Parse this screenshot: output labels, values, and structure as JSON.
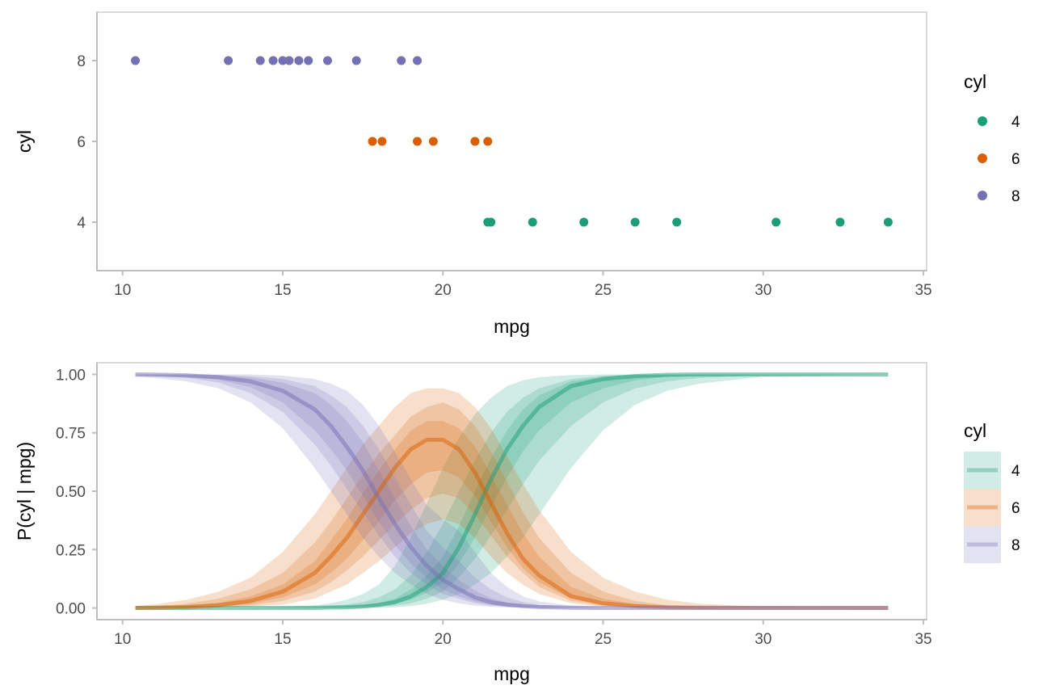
{
  "chart_data": [
    {
      "type": "scatter",
      "xlabel": "mpg",
      "ylabel": "cyl",
      "xlim": [
        9.2,
        35.1
      ],
      "ylim": [
        2.8,
        9.2
      ],
      "xticks": [
        "10",
        "15",
        "20",
        "25",
        "30",
        "35"
      ],
      "yticks": [
        "4",
        "6",
        "8"
      ],
      "grid": false,
      "legend": {
        "title": "cyl",
        "position": "right",
        "labels": [
          "4",
          "6",
          "8"
        ]
      },
      "colors": {
        "4": "#1b9e77",
        "6": "#d95f02",
        "8": "#7570b3"
      },
      "series": [
        {
          "name": "4",
          "y": 4,
          "x": [
            21.4,
            21.5,
            22.8,
            24.4,
            26.0,
            27.3,
            30.4,
            32.4,
            33.9
          ]
        },
        {
          "name": "6",
          "y": 6,
          "x": [
            17.8,
            18.1,
            19.2,
            19.7,
            21.0,
            21.4
          ]
        },
        {
          "name": "8",
          "y": 8,
          "x": [
            10.4,
            13.3,
            14.3,
            14.7,
            15.0,
            15.2,
            15.5,
            15.8,
            16.4,
            17.3,
            18.7,
            19.2
          ]
        }
      ]
    },
    {
      "type": "area",
      "xlabel": "mpg",
      "ylabel": "P(cyl | mpg)",
      "xlim": [
        9.2,
        35.1
      ],
      "ylim": [
        -0.05,
        1.05
      ],
      "xticks": [
        "10",
        "15",
        "20",
        "25",
        "30",
        "35"
      ],
      "yticks": [
        "0.00",
        "0.25",
        "0.50",
        "0.75",
        "1.00"
      ],
      "grid": false,
      "legend": {
        "title": "cyl",
        "position": "right",
        "labels": [
          "4",
          "6",
          "8"
        ]
      },
      "colors": {
        "4": "#1b9e77",
        "6": "#d95f02",
        "8": "#7570b3"
      },
      "x": [
        10.4,
        11,
        12,
        13,
        14,
        15,
        16,
        16.5,
        17,
        17.5,
        18,
        18.5,
        19,
        19.5,
        20,
        20.5,
        21,
        21.5,
        22,
        22.5,
        23,
        24,
        25,
        26,
        27,
        28,
        30,
        33.9
      ],
      "series": [
        {
          "name": "4",
          "median": [
            0,
            0,
            0,
            0,
            0,
            0,
            0,
            0.002,
            0.003,
            0.006,
            0.013,
            0.025,
            0.05,
            0.09,
            0.15,
            0.26,
            0.4,
            0.55,
            0.68,
            0.78,
            0.86,
            0.95,
            0.98,
            0.993,
            0.998,
            1,
            1,
            1
          ],
          "bands": [
            {
              "lower": [
                0,
                0,
                0,
                0,
                0,
                0,
                0,
                0,
                0,
                0,
                0,
                0.003,
                0.008,
                0.018,
                0.035,
                0.06,
                0.1,
                0.15,
                0.22,
                0.3,
                0.4,
                0.6,
                0.76,
                0.87,
                0.93,
                0.96,
                0.99,
                1
              ],
              "upper": [
                0,
                0,
                0,
                0,
                0.002,
                0.005,
                0.012,
                0.02,
                0.035,
                0.06,
                0.1,
                0.18,
                0.3,
                0.45,
                0.6,
                0.73,
                0.83,
                0.9,
                0.95,
                0.975,
                0.988,
                0.997,
                1,
                1,
                1,
                1,
                1,
                1
              ]
            },
            {
              "lower": [
                0,
                0,
                0,
                0,
                0,
                0,
                0,
                0,
                0.001,
                0.002,
                0.005,
                0.01,
                0.02,
                0.04,
                0.07,
                0.13,
                0.21,
                0.31,
                0.42,
                0.53,
                0.63,
                0.78,
                0.88,
                0.94,
                0.97,
                0.985,
                0.996,
                1
              ],
              "upper": [
                0,
                0,
                0,
                0,
                0,
                0.002,
                0.005,
                0.009,
                0.015,
                0.025,
                0.045,
                0.08,
                0.14,
                0.24,
                0.36,
                0.5,
                0.63,
                0.75,
                0.84,
                0.9,
                0.94,
                0.98,
                0.995,
                0.999,
                1,
                1,
                1,
                1
              ]
            },
            {
              "lower": [
                0,
                0,
                0,
                0,
                0,
                0,
                0,
                0,
                0.002,
                0.004,
                0.009,
                0.018,
                0.035,
                0.065,
                0.11,
                0.19,
                0.3,
                0.43,
                0.56,
                0.67,
                0.76,
                0.88,
                0.94,
                0.975,
                0.99,
                0.996,
                0.999,
                1
              ],
              "upper": [
                0,
                0,
                0,
                0,
                0,
                0.001,
                0.002,
                0.004,
                0.007,
                0.012,
                0.022,
                0.04,
                0.08,
                0.14,
                0.22,
                0.35,
                0.5,
                0.64,
                0.76,
                0.85,
                0.91,
                0.97,
                0.99,
                0.997,
                1,
                1,
                1,
                1
              ]
            }
          ]
        },
        {
          "name": "6",
          "median": [
            0,
            0.001,
            0.004,
            0.012,
            0.03,
            0.07,
            0.15,
            0.22,
            0.3,
            0.4,
            0.5,
            0.6,
            0.68,
            0.72,
            0.72,
            0.68,
            0.58,
            0.45,
            0.32,
            0.21,
            0.14,
            0.05,
            0.02,
            0.008,
            0.003,
            0.001,
            0,
            0
          ],
          "bands": [
            {
              "lower": [
                0,
                0,
                0,
                0.002,
                0.006,
                0.015,
                0.04,
                0.07,
                0.1,
                0.15,
                0.2,
                0.26,
                0.32,
                0.36,
                0.38,
                0.36,
                0.3,
                0.22,
                0.15,
                0.1,
                0.06,
                0.02,
                0.006,
                0.002,
                0,
                0,
                0,
                0
              ],
              "upper": [
                0.008,
                0.015,
                0.035,
                0.07,
                0.13,
                0.24,
                0.4,
                0.5,
                0.6,
                0.7,
                0.78,
                0.86,
                0.92,
                0.94,
                0.94,
                0.92,
                0.86,
                0.77,
                0.65,
                0.53,
                0.42,
                0.24,
                0.13,
                0.07,
                0.035,
                0.018,
                0.005,
                0
              ]
            },
            {
              "lower": [
                0,
                0,
                0.001,
                0.004,
                0.012,
                0.03,
                0.07,
                0.11,
                0.16,
                0.22,
                0.29,
                0.36,
                0.42,
                0.47,
                0.49,
                0.47,
                0.4,
                0.31,
                0.22,
                0.15,
                0.09,
                0.03,
                0.01,
                0.003,
                0.001,
                0,
                0,
                0
              ],
              "upper": [
                0.003,
                0.007,
                0.018,
                0.04,
                0.08,
                0.15,
                0.28,
                0.37,
                0.47,
                0.57,
                0.66,
                0.74,
                0.82,
                0.86,
                0.88,
                0.85,
                0.78,
                0.67,
                0.54,
                0.41,
                0.3,
                0.15,
                0.07,
                0.03,
                0.012,
                0.005,
                0.001,
                0
              ]
            },
            {
              "lower": [
                0,
                0,
                0.002,
                0.007,
                0.019,
                0.045,
                0.1,
                0.15,
                0.21,
                0.29,
                0.37,
                0.46,
                0.53,
                0.58,
                0.59,
                0.56,
                0.48,
                0.37,
                0.26,
                0.17,
                0.11,
                0.04,
                0.013,
                0.005,
                0.002,
                0,
                0,
                0
              ],
              "upper": [
                0.001,
                0.003,
                0.009,
                0.022,
                0.05,
                0.1,
                0.2,
                0.29,
                0.38,
                0.49,
                0.59,
                0.68,
                0.76,
                0.8,
                0.8,
                0.77,
                0.69,
                0.57,
                0.44,
                0.32,
                0.22,
                0.09,
                0.04,
                0.016,
                0.006,
                0.002,
                0,
                0
              ]
            }
          ]
        },
        {
          "name": "8",
          "median": [
            1,
            0.999,
            0.996,
            0.988,
            0.97,
            0.93,
            0.85,
            0.78,
            0.69,
            0.59,
            0.47,
            0.36,
            0.26,
            0.18,
            0.12,
            0.08,
            0.045,
            0.025,
            0.014,
            0.008,
            0.004,
            0.001,
            0,
            0,
            0,
            0,
            0,
            0
          ],
          "bands": [
            {
              "lower": [
                0.99,
                0.985,
                0.97,
                0.94,
                0.88,
                0.77,
                0.6,
                0.5,
                0.4,
                0.3,
                0.22,
                0.15,
                0.1,
                0.06,
                0.035,
                0.02,
                0.01,
                0.005,
                0.002,
                0.001,
                0,
                0,
                0,
                0,
                0,
                0,
                0,
                0
              ],
              "upper": [
                1,
                1,
                1,
                1,
                1,
                0.995,
                0.98,
                0.96,
                0.93,
                0.87,
                0.78,
                0.67,
                0.55,
                0.44,
                0.38,
                0.33,
                0.24,
                0.15,
                0.09,
                0.05,
                0.028,
                0.01,
                0.003,
                0.001,
                0,
                0,
                0,
                0
              ]
            },
            {
              "lower": [
                0.996,
                0.993,
                0.985,
                0.965,
                0.92,
                0.84,
                0.7,
                0.61,
                0.51,
                0.41,
                0.31,
                0.22,
                0.15,
                0.1,
                0.06,
                0.04,
                0.02,
                0.01,
                0.005,
                0.003,
                0.001,
                0,
                0,
                0,
                0,
                0,
                0,
                0
              ],
              "upper": [
                1,
                1,
                1,
                0.998,
                0.993,
                0.98,
                0.95,
                0.91,
                0.86,
                0.78,
                0.68,
                0.56,
                0.44,
                0.33,
                0.26,
                0.2,
                0.13,
                0.08,
                0.045,
                0.025,
                0.013,
                0.004,
                0.001,
                0,
                0,
                0,
                0,
                0
              ]
            },
            {
              "lower": [
                0.998,
                0.996,
                0.99,
                0.977,
                0.945,
                0.88,
                0.76,
                0.68,
                0.59,
                0.48,
                0.37,
                0.27,
                0.19,
                0.13,
                0.08,
                0.05,
                0.027,
                0.014,
                0.008,
                0.004,
                0.002,
                0,
                0,
                0,
                0,
                0,
                0,
                0
              ],
              "upper": [
                1,
                1,
                0.999,
                0.996,
                0.987,
                0.965,
                0.92,
                0.87,
                0.8,
                0.71,
                0.59,
                0.47,
                0.35,
                0.25,
                0.18,
                0.12,
                0.075,
                0.042,
                0.024,
                0.013,
                0.007,
                0.002,
                0,
                0,
                0,
                0,
                0,
                0
              ]
            }
          ]
        }
      ]
    }
  ]
}
